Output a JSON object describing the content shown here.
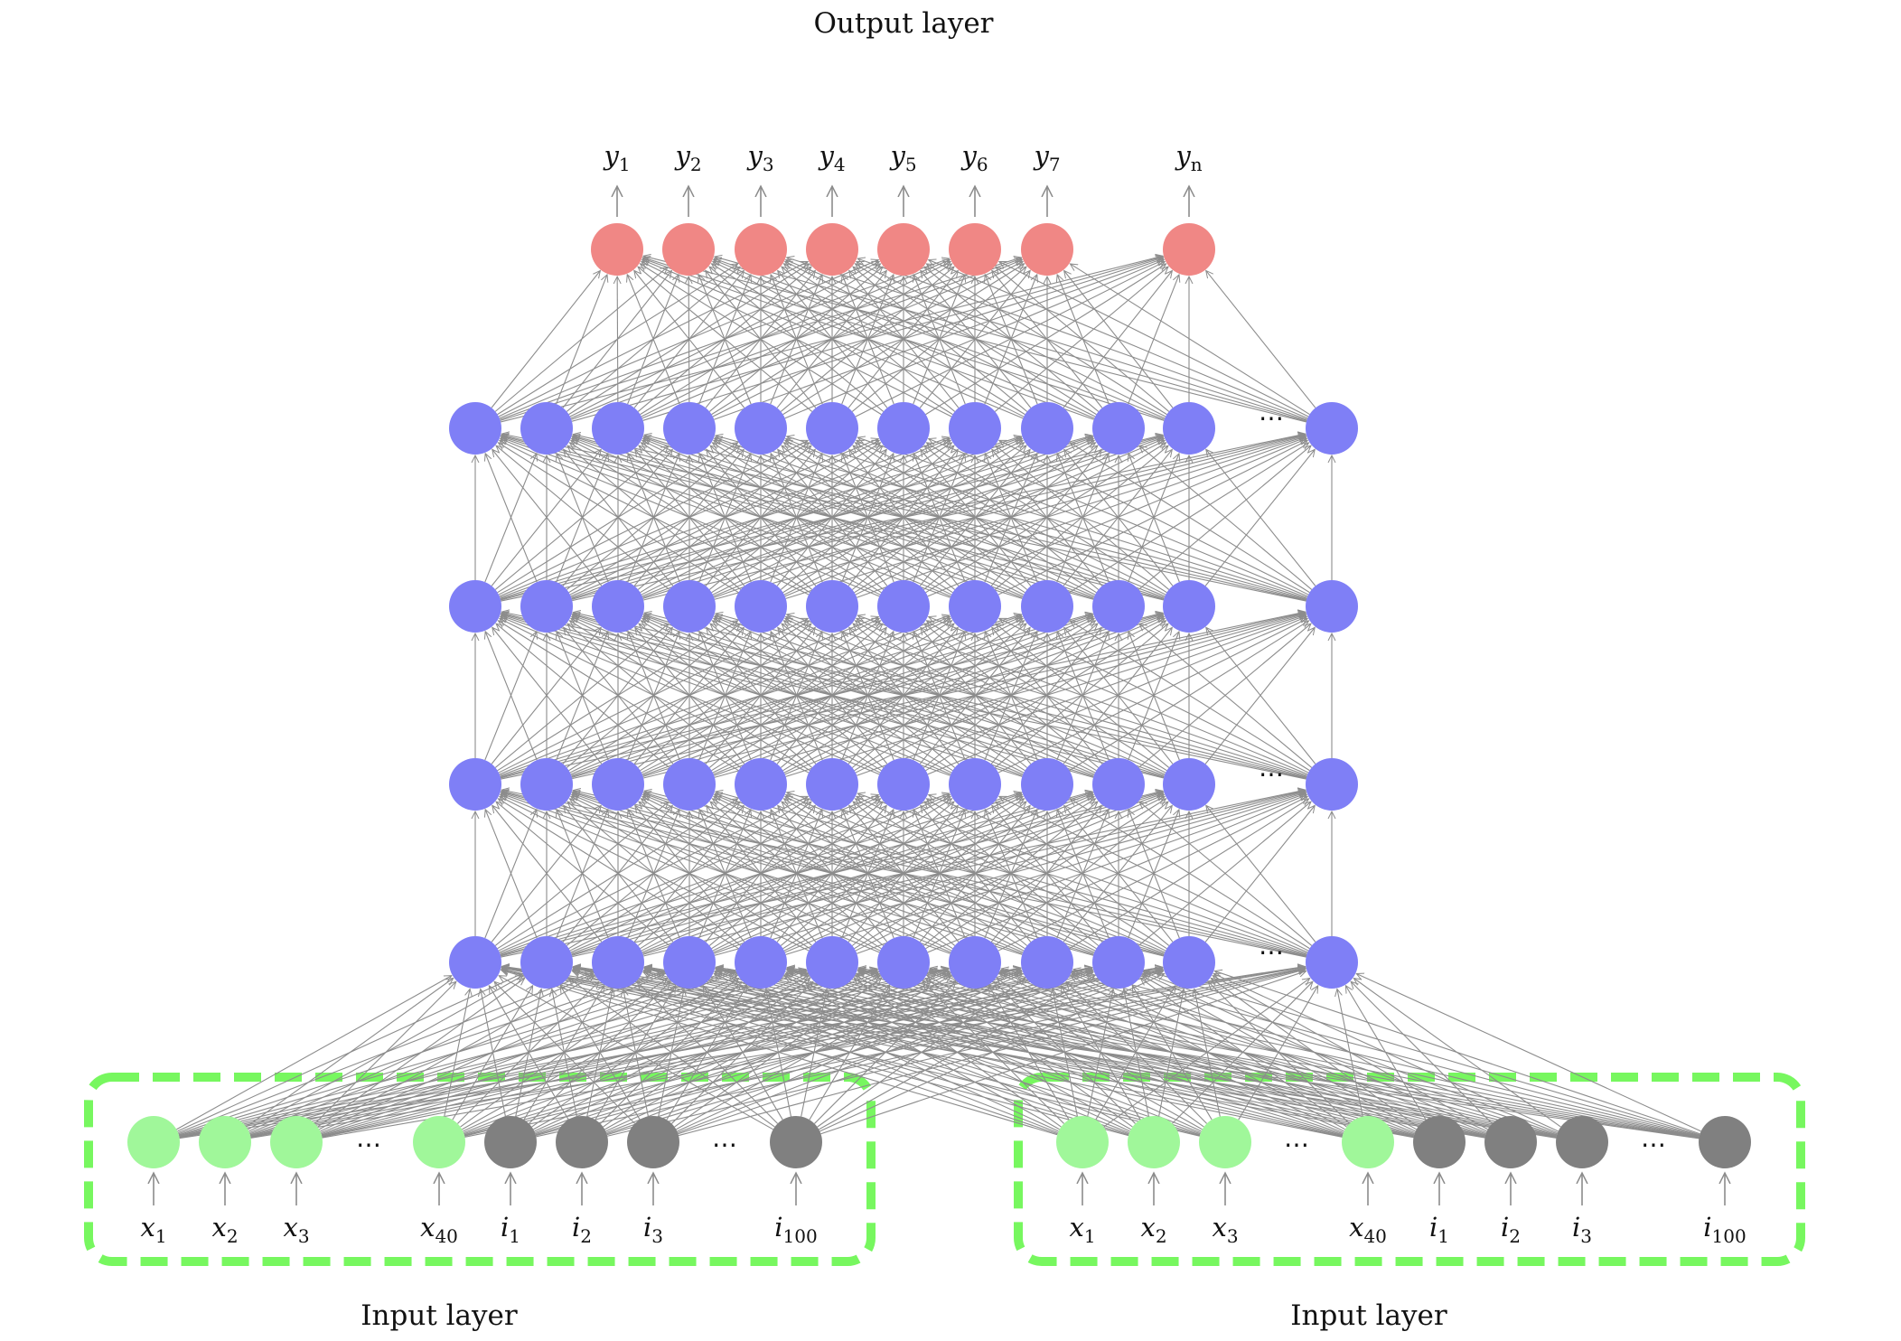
{
  "titles": {
    "output": "Output layer",
    "input_left": "Input layer",
    "input_right": "Input layer"
  },
  "colors": {
    "output_node": "#f08785",
    "hidden_node": "#7f7ff6",
    "input_x_node": "#a0f79a",
    "input_i_node": "#808080",
    "group_box": "#77f75f",
    "edge": "#8c8c8c"
  },
  "ellipsis": "⋯",
  "output_labels": [
    {
      "base": "y",
      "sub": "1"
    },
    {
      "base": "y",
      "sub": "2"
    },
    {
      "base": "y",
      "sub": "3"
    },
    {
      "base": "y",
      "sub": "4"
    },
    {
      "base": "y",
      "sub": "5"
    },
    {
      "base": "y",
      "sub": "6"
    },
    {
      "base": "y",
      "sub": "7"
    },
    {
      "base": "y",
      "sub": "n"
    }
  ],
  "input_groups": [
    {
      "labels": [
        {
          "base": "x",
          "sub": "1"
        },
        {
          "base": "x",
          "sub": "2"
        },
        {
          "base": "x",
          "sub": "3"
        },
        {
          "base": "x",
          "sub": "40"
        },
        {
          "base": "i",
          "sub": "1"
        },
        {
          "base": "i",
          "sub": "2"
        },
        {
          "base": "i",
          "sub": "3"
        },
        {
          "base": "i",
          "sub": "100"
        }
      ]
    },
    {
      "labels": [
        {
          "base": "x",
          "sub": "1"
        },
        {
          "base": "x",
          "sub": "2"
        },
        {
          "base": "x",
          "sub": "3"
        },
        {
          "base": "x",
          "sub": "40"
        },
        {
          "base": "i",
          "sub": "1"
        },
        {
          "base": "i",
          "sub": "2"
        },
        {
          "base": "i",
          "sub": "3"
        },
        {
          "base": "i",
          "sub": "100"
        }
      ]
    }
  ],
  "hidden_layers": [
    {
      "node_count": 12,
      "ellipsis_shown": true
    },
    {
      "node_count": 12,
      "ellipsis_shown": false
    },
    {
      "node_count": 12,
      "ellipsis_shown": true
    },
    {
      "node_count": 12,
      "ellipsis_shown": true
    }
  ]
}
